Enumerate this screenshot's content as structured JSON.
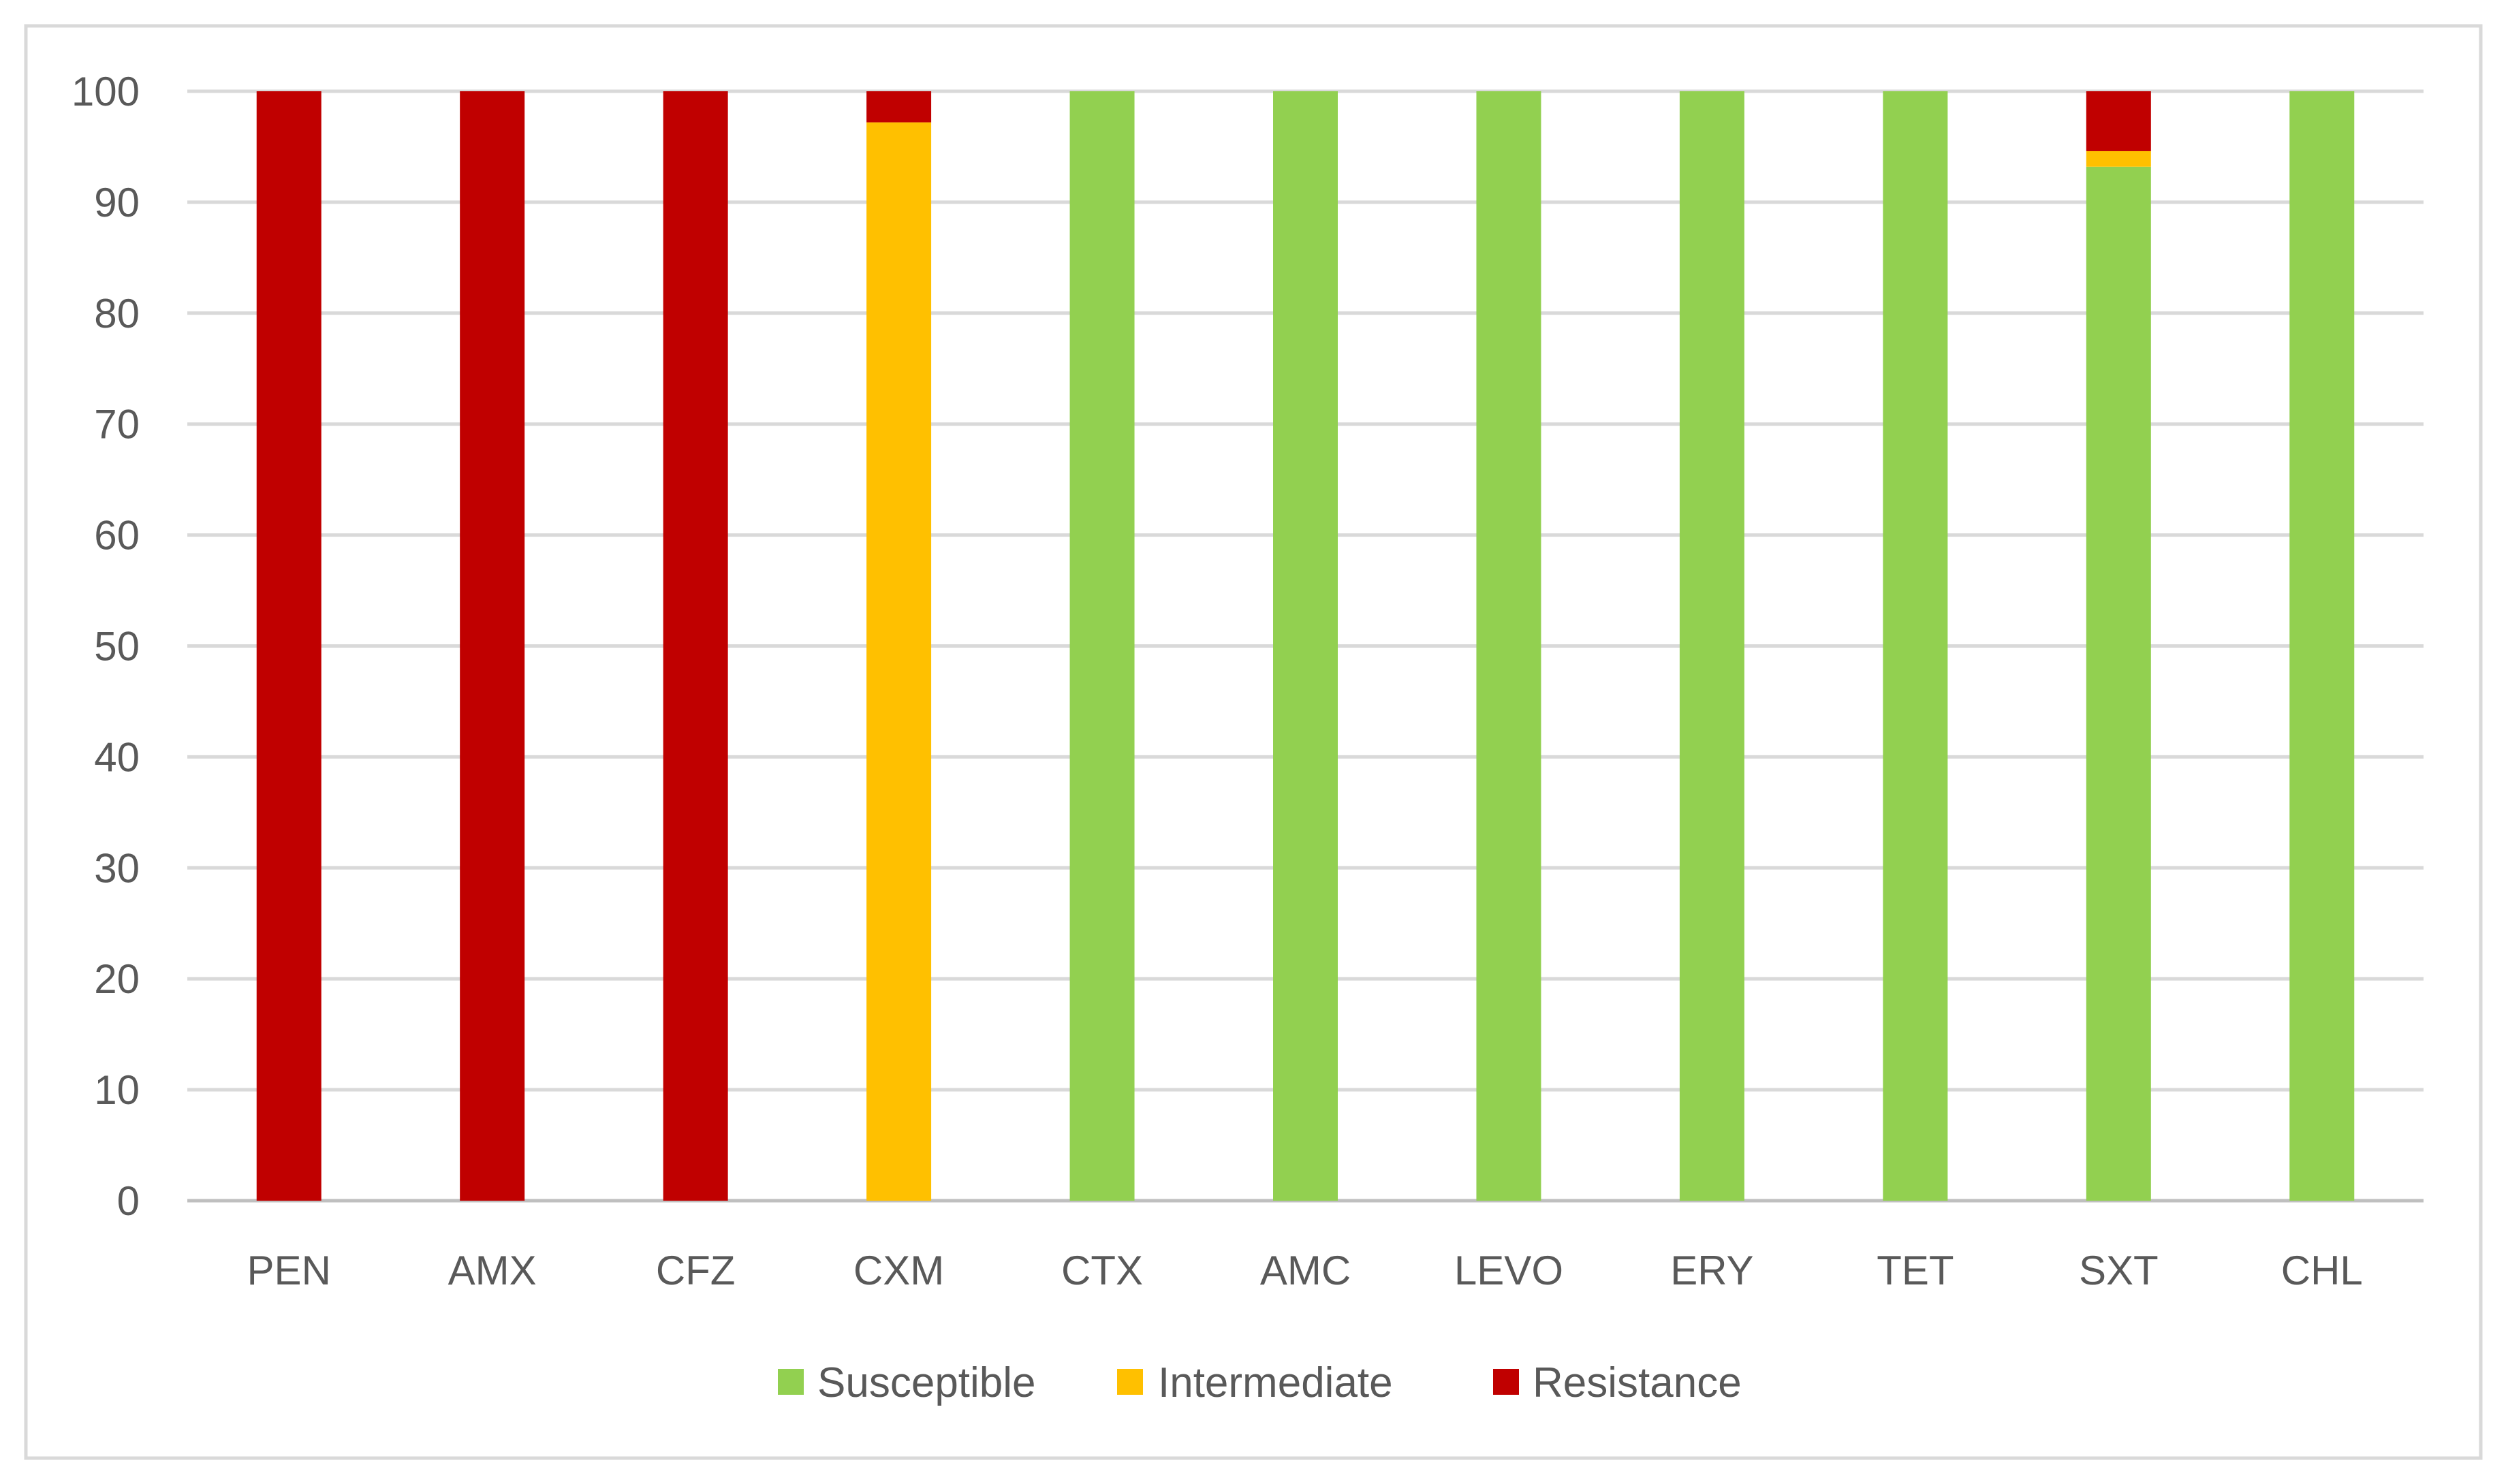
{
  "chart_data": {
    "type": "bar",
    "stacked": true,
    "categories": [
      "PEN",
      "AMX",
      "CFZ",
      "CXM",
      "CTX",
      "AMC",
      "LEVO",
      "ERY",
      "TET",
      "SXT",
      "CHL"
    ],
    "series": [
      {
        "name": "Susceptible",
        "color": "#92D050",
        "values": [
          0,
          0,
          0,
          0,
          100,
          100,
          100,
          100,
          100,
          93.2,
          100
        ]
      },
      {
        "name": "Intermediate",
        "color": "#FFC000",
        "values": [
          0,
          0,
          0,
          97.2,
          0,
          0,
          0,
          0,
          0,
          1.4,
          0
        ]
      },
      {
        "name": "Resistance",
        "color": "#C00000",
        "values": [
          100,
          100,
          100,
          2.8,
          0,
          0,
          0,
          0,
          0,
          5.4,
          0
        ]
      }
    ],
    "yticks": [
      "0",
      "10",
      "20",
      "30",
      "40",
      "50",
      "60",
      "70",
      "80",
      "90",
      "100"
    ],
    "ylim": [
      0,
      100
    ],
    "grid": true,
    "legend": "bottom-center",
    "title": "",
    "xlabel": "",
    "ylabel": ""
  }
}
